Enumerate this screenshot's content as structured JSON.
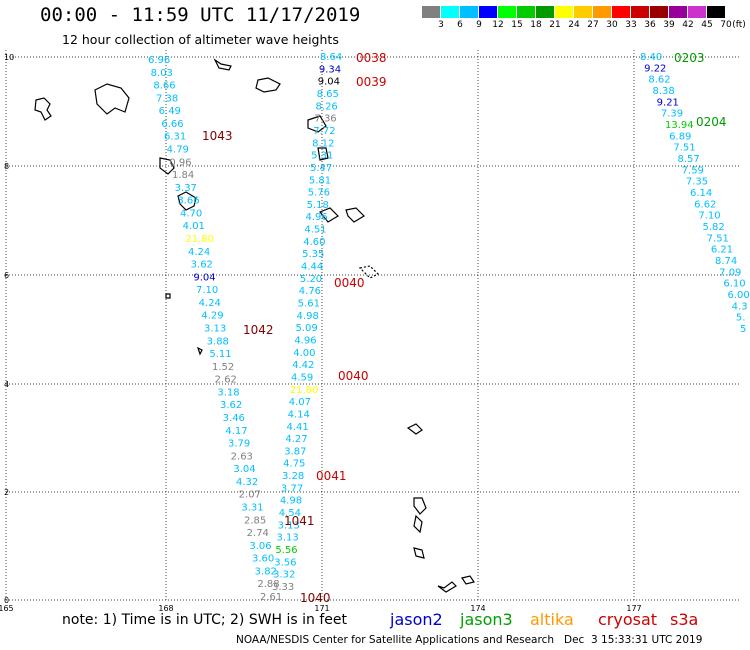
{
  "title": "00:00 - 11:59 UTC 11/17/2019",
  "subtitle": "12 hour collection of altimeter wave heights",
  "note": "note: 1) Time is in UTC; 2) SWH is in feet",
  "credit": "NOAA/NESDIS Center for Satellite Applications and Research   Dec  3 15:33:31 UTC 2019",
  "missions": [
    {
      "label": "jason2",
      "color": "#0000cc"
    },
    {
      "label": "jason3",
      "color": "#00a000"
    },
    {
      "label": "altika",
      "color": "#ff9900"
    },
    {
      "label": "cryosat",
      "color": "#cc0000"
    },
    {
      "label": "s3a",
      "color": "#cc0000"
    }
  ],
  "legend": {
    "unit": "(ft)",
    "colors": [
      "#808080",
      "#00ffff",
      "#00bfff",
      "#0000ff",
      "#00ff00",
      "#00cc00",
      "#009900",
      "#ffff00",
      "#ffcc00",
      "#ff9900",
      "#ff0000",
      "#cc0000",
      "#990000",
      "#990099",
      "#cc33cc",
      "#000000"
    ],
    "labels": [
      "3",
      "6",
      "9",
      "12",
      "15",
      "18",
      "21",
      "24",
      "27",
      "30",
      "33",
      "36",
      "39",
      "42",
      "45",
      "70"
    ]
  },
  "axes": {
    "x_ticks": [
      "165",
      "168",
      "171",
      "174",
      "177"
    ],
    "y_ticks": [
      "10",
      "8",
      "6",
      "4",
      "2",
      "0"
    ]
  },
  "time_labels": [
    {
      "text": "0038",
      "color": "#cc0000"
    },
    {
      "text": "0039",
      "color": "#cc0000"
    },
    {
      "text": "1043",
      "color": "#800000"
    },
    {
      "text": "0040",
      "color": "#cc0000"
    },
    {
      "text": "1042",
      "color": "#800000"
    },
    {
      "text": "0040",
      "color": "#cc0000"
    },
    {
      "text": "0041",
      "color": "#cc0000"
    },
    {
      "text": "1041",
      "color": "#800000"
    },
    {
      "text": "1040",
      "color": "#800000"
    },
    {
      "text": "0203",
      "color": "#009900"
    },
    {
      "text": "0204",
      "color": "#009900"
    }
  ],
  "tracks": [
    {
      "values": [
        "6.96",
        "8.03",
        "8.66",
        "7.38",
        "6.49",
        "6.66",
        "6.31",
        "4.79",
        "0.96",
        "1.84",
        "3.37",
        "3.66",
        "4.70",
        "4.01",
        "21.80",
        "4.24",
        "3.62",
        "9.04",
        "7.10",
        "4.24",
        "4.29",
        "3.13",
        "3.88",
        "5.11",
        "1.52",
        "2.62",
        "3.18",
        "3.62",
        "3.46",
        "4.17",
        "3.79",
        "2.63",
        "3.04",
        "4.32",
        "2.07",
        "3.31",
        "2.85",
        "2.74",
        "3.06",
        "3.60",
        "3.82",
        "2.88",
        "2.61"
      ],
      "colors": [
        "#00bfff",
        "#00bfff",
        "#00bfff",
        "#00bfff",
        "#00bfff",
        "#00bfff",
        "#00bfff",
        "#00bfff",
        "#808080",
        "#808080",
        "#00bfff",
        "#00bfff",
        "#00bfff",
        "#00bfff",
        "#ffff00",
        "#00bfff",
        "#00bfff",
        "#0000cc",
        "#00bfff",
        "#00bfff",
        "#00bfff",
        "#00bfff",
        "#00bfff",
        "#00bfff",
        "#808080",
        "#808080",
        "#00bfff",
        "#00bfff",
        "#00bfff",
        "#00bfff",
        "#00bfff",
        "#808080",
        "#00bfff",
        "#00bfff",
        "#808080",
        "#00bfff",
        "#808080",
        "#808080",
        "#00bfff",
        "#00bfff",
        "#00bfff",
        "#808080",
        "#808080"
      ]
    },
    {
      "values": [
        "8.64",
        "9.34",
        "9.04",
        "8.65",
        "8.26",
        "7.36",
        "7.72",
        "8.12",
        "5.31",
        "5.47",
        "5.81",
        "5.76",
        "5.18",
        "4.96",
        "4.51",
        "4.60",
        "5.35",
        "4.44",
        "5.20",
        "4.76",
        "5.61",
        "4.98",
        "5.09",
        "4.96",
        "4.00",
        "4.42",
        "4.59",
        "21.80",
        "4.07",
        "4.14",
        "4.41",
        "4.27",
        "3.87",
        "4.75",
        "3.28",
        "3.77",
        "4.98",
        "4.54",
        "3.13",
        "3.13",
        "5.56",
        "3.56",
        "3.32",
        "3.33"
      ],
      "colors": [
        "#00bfff",
        "#0000cc",
        "#000000",
        "#00bfff",
        "#00bfff",
        "#808080",
        "#00bfff",
        "#00bfff",
        "#00bfff",
        "#00bfff",
        "#00bfff",
        "#00bfff",
        "#00bfff",
        "#00bfff",
        "#00bfff",
        "#00bfff",
        "#00bfff",
        "#00bfff",
        "#00bfff",
        "#00bfff",
        "#00bfff",
        "#00bfff",
        "#00bfff",
        "#00bfff",
        "#00bfff",
        "#00bfff",
        "#00bfff",
        "#ffff00",
        "#00bfff",
        "#00bfff",
        "#00bfff",
        "#00bfff",
        "#00bfff",
        "#00bfff",
        "#00bfff",
        "#00bfff",
        "#00bfff",
        "#00bfff",
        "#00bfff",
        "#00bfff",
        "#00cc00",
        "#00bfff",
        "#00bfff",
        "#808080"
      ]
    },
    {
      "values": [
        "8.40",
        "9.22",
        "8.62",
        "8.38",
        "9.21",
        "7.39",
        "13.94",
        "6.89",
        "7.51",
        "8.57",
        "7.59",
        "7.35",
        "6.14",
        "6.62",
        "7.10",
        "5.82",
        "7.51",
        "6.21",
        "8.74",
        "7.09",
        "6.10",
        "6.00",
        "4.3",
        "5.",
        "5"
      ],
      "colors": [
        "#00bfff",
        "#0000cc",
        "#00bfff",
        "#00bfff",
        "#0000cc",
        "#00bfff",
        "#00cc00",
        "#00bfff",
        "#00bfff",
        "#00bfff",
        "#00bfff",
        "#00bfff",
        "#00bfff",
        "#00bfff",
        "#00bfff",
        "#00bfff",
        "#00bfff",
        "#00bfff",
        "#00bfff",
        "#00bfff",
        "#00bfff",
        "#00bfff",
        "#00bfff",
        "#00bfff",
        "#00bfff"
      ]
    }
  ]
}
